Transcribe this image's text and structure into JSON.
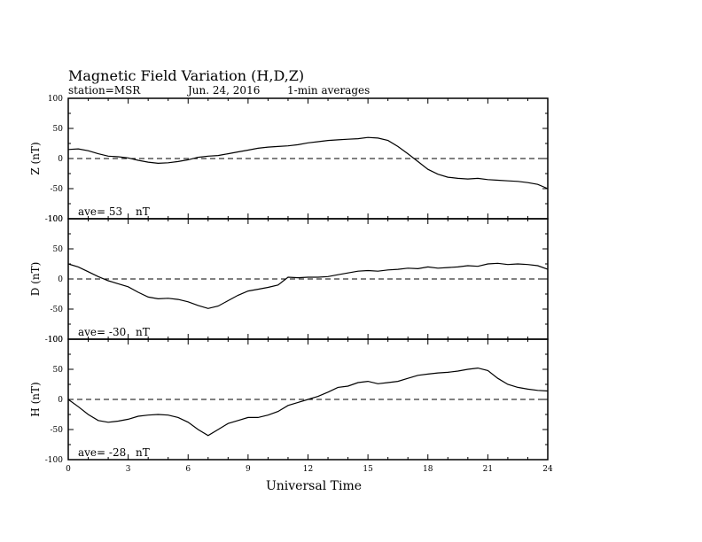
{
  "title": "Magnetic Field Variation (H,D,Z)",
  "subtitle": {
    "station": "station=MSR",
    "date": "Jun. 24, 2016",
    "averaging": "1-min averages"
  },
  "xlabel": "Universal Time",
  "chart_data": [
    {
      "type": "line",
      "panel": "Z",
      "ylabel": "Z (nT)",
      "ave_label": "ave= 53",
      "ave_unit": "nT",
      "xlim": [
        0,
        24
      ],
      "ylim": [
        -100,
        100
      ],
      "y_ticks": [
        "100",
        "50",
        "0",
        "-50",
        "-100"
      ],
      "x": [
        0,
        0.5,
        1,
        1.5,
        2,
        2.5,
        3,
        3.5,
        4,
        4.5,
        5,
        5.5,
        6,
        6.5,
        7,
        7.5,
        8,
        8.5,
        9,
        9.5,
        10,
        10.5,
        11,
        11.5,
        12,
        12.5,
        13,
        13.5,
        14,
        14.5,
        15,
        15.5,
        16,
        16.5,
        17,
        17.5,
        18,
        18.5,
        19,
        19.5,
        20,
        20.5,
        21,
        21.5,
        22,
        22.5,
        23,
        23.5,
        24
      ],
      "y": [
        15,
        16,
        13,
        8,
        4,
        3,
        1,
        -3,
        -6,
        -8,
        -7,
        -5,
        -2,
        2,
        4,
        5,
        8,
        11,
        14,
        17,
        19,
        20,
        21,
        23,
        26,
        28,
        30,
        31,
        32,
        33,
        35,
        34,
        30,
        20,
        8,
        -5,
        -18,
        -26,
        -31,
        -33,
        -34,
        -33,
        -35,
        -36,
        -37,
        -38,
        -40,
        -43,
        -50
      ],
      "grid": false,
      "zero_line": "dashed"
    },
    {
      "type": "line",
      "panel": "D",
      "ylabel": "D (nT)",
      "ave_label": "ave= -30",
      "ave_unit": "nT",
      "xlim": [
        0,
        24
      ],
      "ylim": [
        -100,
        100
      ],
      "y_ticks": [
        "100",
        "50",
        "0",
        "-50",
        "-100"
      ],
      "x": [
        0,
        0.5,
        1,
        1.5,
        2,
        2.5,
        3,
        3.5,
        4,
        4.5,
        5,
        5.5,
        6,
        6.5,
        7,
        7.5,
        8,
        8.5,
        9,
        9.5,
        10,
        10.5,
        11,
        11.5,
        12,
        12.5,
        13,
        13.5,
        14,
        14.5,
        15,
        15.5,
        16,
        16.5,
        17,
        17.5,
        18,
        18.5,
        19,
        19.5,
        20,
        20.5,
        21,
        21.5,
        22,
        22.5,
        23,
        23.5,
        24
      ],
      "y": [
        25,
        20,
        12,
        4,
        -3,
        -8,
        -13,
        -22,
        -30,
        -33,
        -32,
        -34,
        -38,
        -44,
        -49,
        -45,
        -36,
        -27,
        -20,
        -17,
        -14,
        -10,
        3,
        2,
        3,
        3,
        4,
        7,
        10,
        13,
        14,
        13,
        15,
        16,
        18,
        17,
        20,
        18,
        19,
        20,
        22,
        21,
        25,
        26,
        24,
        25,
        24,
        22,
        16
      ],
      "grid": false,
      "zero_line": "dashed"
    },
    {
      "type": "line",
      "panel": "H",
      "ylabel": "H (nT)",
      "ave_label": "ave= -28",
      "ave_unit": "nT",
      "xlim": [
        0,
        24
      ],
      "ylim": [
        -100,
        100
      ],
      "y_ticks": [
        "100",
        "50",
        "0",
        "-50",
        "-100"
      ],
      "x_ticks": [
        "0",
        "3",
        "6",
        "9",
        "12",
        "15",
        "18",
        "21",
        "24"
      ],
      "x": [
        0,
        0.5,
        1,
        1.5,
        2,
        2.5,
        3,
        3.5,
        4,
        4.5,
        5,
        5.5,
        6,
        6.5,
        7,
        7.5,
        8,
        8.5,
        9,
        9.5,
        10,
        10.5,
        11,
        11.5,
        12,
        12.5,
        13,
        13.5,
        14,
        14.5,
        15,
        15.5,
        16,
        16.5,
        17,
        17.5,
        18,
        18.5,
        19,
        19.5,
        20,
        20.5,
        21,
        21.5,
        22,
        22.5,
        23,
        23.5,
        24
      ],
      "y": [
        0,
        -12,
        -25,
        -35,
        -38,
        -36,
        -33,
        -28,
        -26,
        -25,
        -26,
        -30,
        -38,
        -50,
        -60,
        -50,
        -40,
        -35,
        -30,
        -30,
        -26,
        -20,
        -10,
        -5,
        0,
        5,
        12,
        20,
        22,
        28,
        30,
        26,
        28,
        30,
        35,
        40,
        42,
        44,
        45,
        47,
        50,
        52,
        48,
        35,
        25,
        20,
        17,
        15,
        14
      ],
      "grid": false,
      "zero_line": "dashed"
    }
  ]
}
